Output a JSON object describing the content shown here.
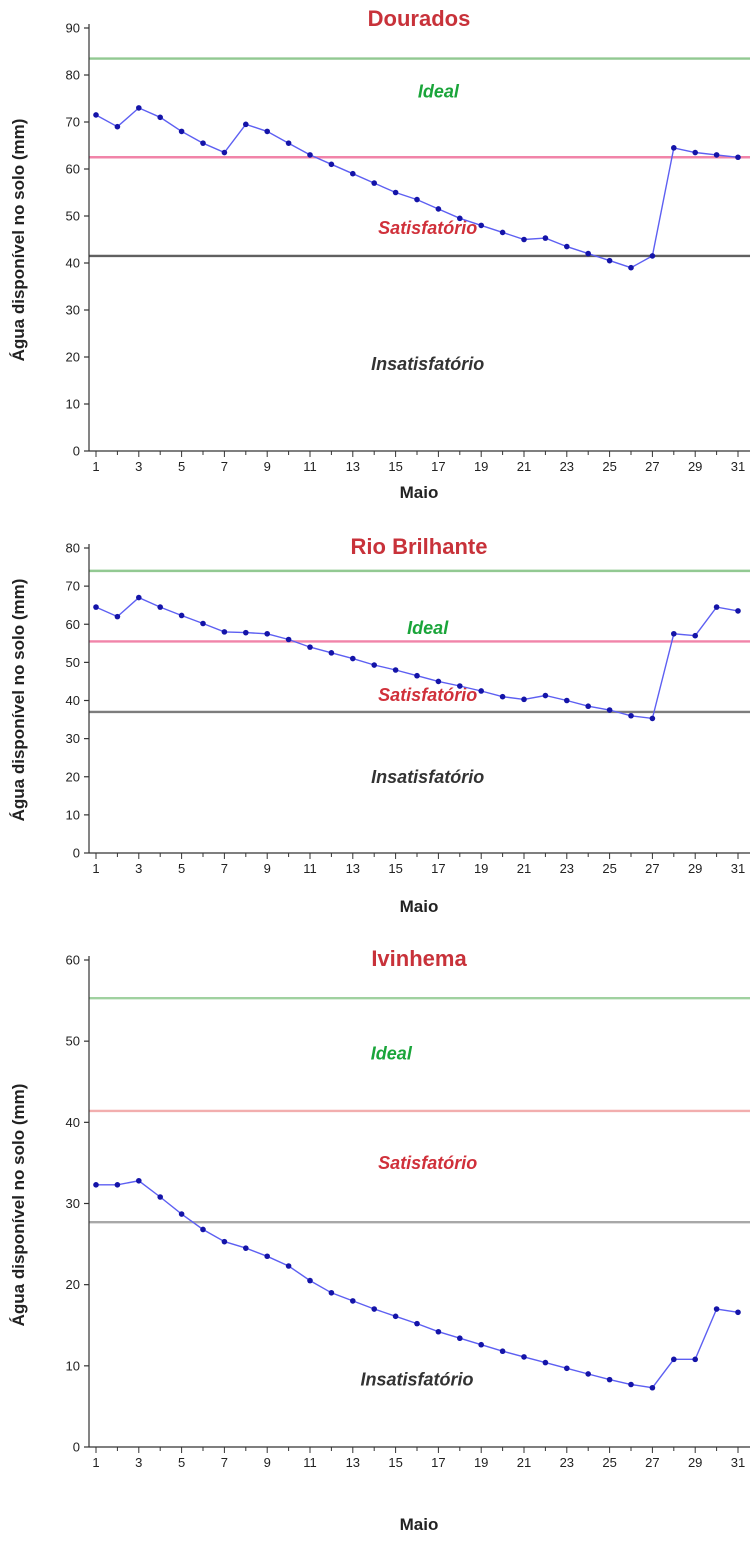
{
  "chart_data": [
    {
      "type": "line",
      "title": "Dourados",
      "xlabel": "Maio",
      "ylabel": "Água disponível no solo (mm)",
      "xlim": [
        1,
        31
      ],
      "ylim": [
        0,
        90
      ],
      "x_ticks": [
        "1",
        "3",
        "5",
        "7",
        "9",
        "11",
        "13",
        "15",
        "17",
        "19",
        "21",
        "23",
        "25",
        "27",
        "29",
        "31"
      ],
      "y_ticks": [
        "0",
        "10",
        "20",
        "30",
        "40",
        "50",
        "60",
        "70",
        "80",
        "90"
      ],
      "grid": false,
      "thresholds": [
        {
          "value": 83.5,
          "color": "#7fbf7f"
        },
        {
          "value": 62.5,
          "color": "#ee6f9a"
        },
        {
          "value": 41.5,
          "color": "#444444"
        }
      ],
      "zones": [
        {
          "label": "Ideal",
          "x": 17,
          "y": 76.5,
          "color": "#1aa53a"
        },
        {
          "label": "Satisfatório",
          "x": 16.5,
          "y": 47.5,
          "color": "#d0303a"
        },
        {
          "label": "Insatisfatório",
          "x": 16.5,
          "y": 18.5,
          "color": "#333333"
        }
      ],
      "series": [
        {
          "color": "#5d5ff2",
          "x": [
            1,
            2,
            3,
            4,
            5,
            6,
            7,
            8,
            9,
            10,
            11,
            12,
            13,
            14,
            15,
            16,
            17,
            18,
            19,
            20,
            21,
            22,
            23,
            24,
            25,
            26,
            27,
            28,
            29,
            30,
            31
          ],
          "values": [
            71.5,
            69,
            73,
            71,
            68,
            65.5,
            63.5,
            69.5,
            68,
            65.5,
            63,
            61,
            59,
            57,
            55,
            53.5,
            51.5,
            49.5,
            48,
            46.5,
            45,
            45.3,
            43.5,
            42,
            40.5,
            39,
            41.5,
            64.5,
            63.5,
            63,
            62.5
          ]
        }
      ]
    },
    {
      "type": "line",
      "title": "Rio Brilhante",
      "xlabel": "Maio",
      "ylabel": "Água disponível no solo (mm)",
      "xlim": [
        1,
        31
      ],
      "ylim": [
        0,
        80
      ],
      "x_ticks": [
        "1",
        "3",
        "5",
        "7",
        "9",
        "11",
        "13",
        "15",
        "17",
        "19",
        "21",
        "23",
        "25",
        "27",
        "29",
        "31"
      ],
      "y_ticks": [
        "0",
        "10",
        "20",
        "30",
        "40",
        "50",
        "60",
        "70",
        "80"
      ],
      "grid": false,
      "thresholds": [
        {
          "value": 74,
          "color": "#7fbf7f"
        },
        {
          "value": 55.5,
          "color": "#ee6f9a"
        },
        {
          "value": 37,
          "color": "#666666"
        }
      ],
      "zones": [
        {
          "label": "Ideal",
          "x": 16.5,
          "y": 59,
          "color": "#1aa53a"
        },
        {
          "label": "Satisfatório",
          "x": 16.5,
          "y": 41.5,
          "color": "#d0303a"
        },
        {
          "label": "Insatisfatório",
          "x": 16.5,
          "y": 20,
          "color": "#333333"
        }
      ],
      "series": [
        {
          "color": "#5d5ff2",
          "x": [
            1,
            2,
            3,
            4,
            5,
            6,
            7,
            8,
            9,
            10,
            11,
            12,
            13,
            14,
            15,
            16,
            17,
            18,
            19,
            20,
            21,
            22,
            23,
            24,
            25,
            26,
            27,
            28,
            29,
            30,
            31
          ],
          "values": [
            64.5,
            62,
            67,
            64.5,
            62.3,
            60.2,
            58,
            57.8,
            57.5,
            56,
            54,
            52.5,
            51,
            49.3,
            48,
            46.5,
            45,
            43.8,
            42.5,
            41,
            40.3,
            41.3,
            40,
            38.5,
            37.5,
            36,
            35.3,
            57.5,
            57,
            64.5,
            63.5
          ]
        }
      ]
    },
    {
      "type": "line",
      "title": "Ivinhema",
      "xlabel": "Maio",
      "ylabel": "Água disponível no solo (mm)",
      "xlim": [
        1,
        31
      ],
      "ylim": [
        0,
        60
      ],
      "x_ticks": [
        "1",
        "3",
        "5",
        "7",
        "9",
        "11",
        "13",
        "15",
        "17",
        "19",
        "21",
        "23",
        "25",
        "27",
        "29",
        "31"
      ],
      "y_ticks": [
        "0",
        "10",
        "20",
        "30",
        "40",
        "50",
        "60"
      ],
      "grid": false,
      "thresholds": [
        {
          "value": 55.3,
          "color": "#8fc98f"
        },
        {
          "value": 41.4,
          "color": "#f0a0a0"
        },
        {
          "value": 27.7,
          "color": "#999999"
        }
      ],
      "zones": [
        {
          "label": "Ideal",
          "x": 14.8,
          "y": 48.5,
          "color": "#1aa53a"
        },
        {
          "label": "Satisfatório",
          "x": 16.5,
          "y": 35,
          "color": "#d0303a"
        },
        {
          "label": "Insatisfatório",
          "x": 16,
          "y": 8.3,
          "color": "#333333"
        }
      ],
      "series": [
        {
          "color": "#5d5ff2",
          "x": [
            1,
            2,
            3,
            4,
            5,
            6,
            7,
            8,
            9,
            10,
            11,
            12,
            13,
            14,
            15,
            16,
            17,
            18,
            19,
            20,
            21,
            22,
            23,
            24,
            25,
            26,
            27,
            28,
            29,
            30,
            31
          ],
          "values": [
            32.3,
            32.3,
            32.8,
            30.8,
            28.7,
            26.8,
            25.3,
            24.5,
            23.5,
            22.3,
            20.5,
            19,
            18,
            17,
            16.1,
            15.2,
            14.2,
            13.4,
            12.6,
            11.8,
            11.1,
            10.4,
            9.7,
            9,
            8.3,
            7.7,
            7.3,
            10.8,
            10.8,
            17,
            16.6
          ]
        }
      ]
    }
  ]
}
